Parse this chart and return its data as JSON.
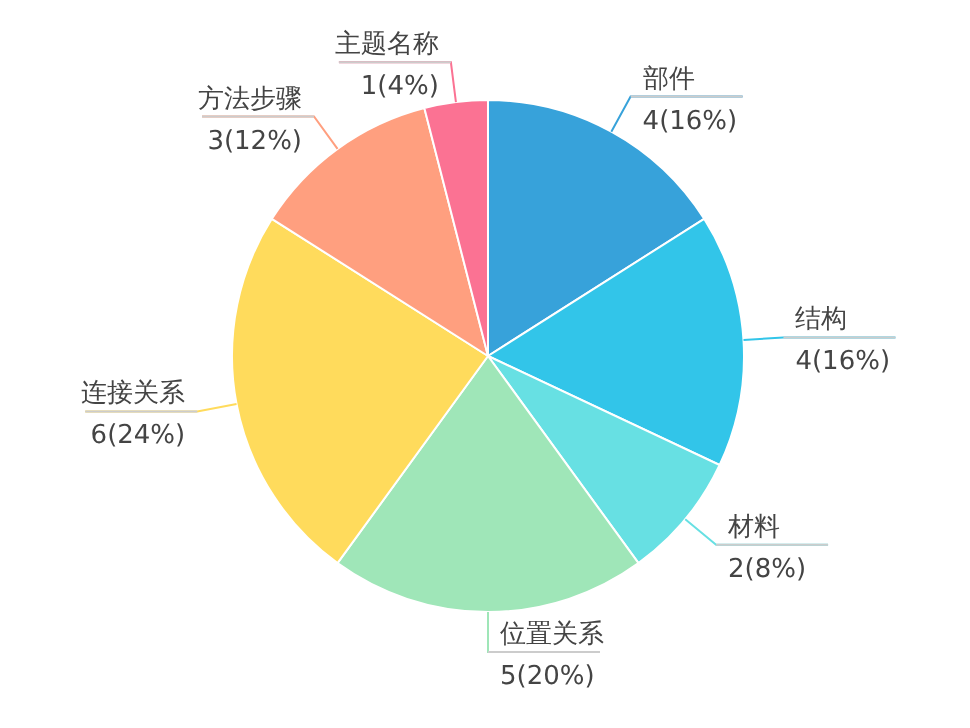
{
  "chart_data": {
    "type": "pie",
    "categories": [
      "部件",
      "结构",
      "材料",
      "位置关系",
      "连接关系",
      "方法步骤",
      "主题名称"
    ],
    "values": [
      4,
      4,
      2,
      5,
      6,
      3,
      1
    ],
    "colors": [
      "#37a2da",
      "#32c5e9",
      "#67e0e3",
      "#9fe6b8",
      "#ffdb5c",
      "#ff9f7f",
      "#fb7293"
    ],
    "value_labels": [
      "4(16%)",
      "4(16%)",
      "2(8%)",
      "5(20%)",
      "6(24%)",
      "3(12%)",
      "1(4%)"
    ]
  }
}
